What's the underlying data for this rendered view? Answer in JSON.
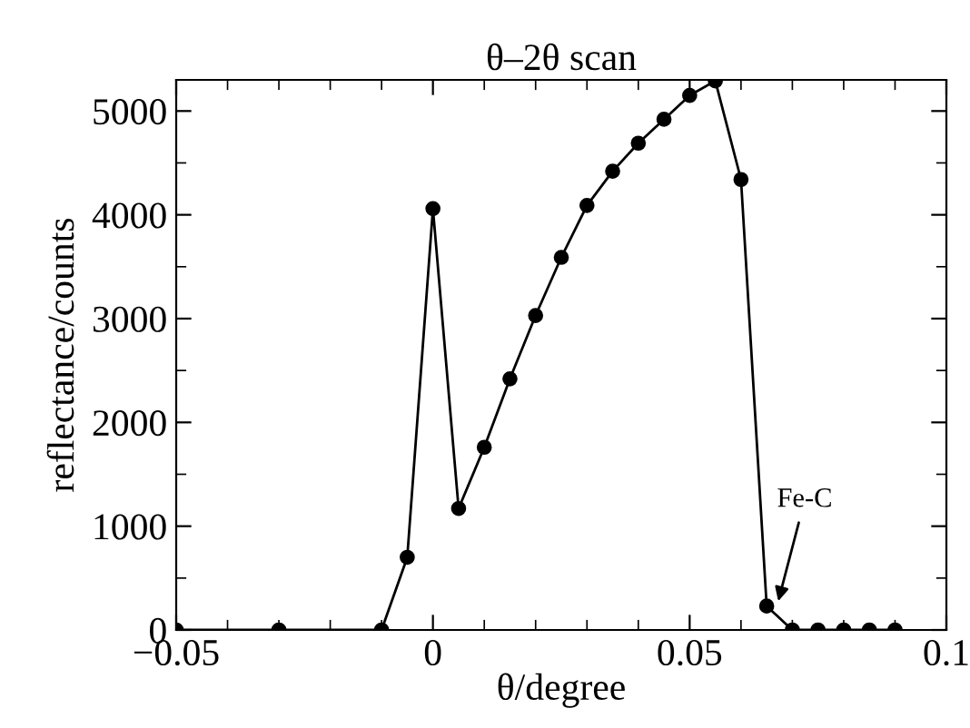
{
  "chart_data": {
    "type": "line",
    "title": "θ–2θ scan",
    "xlabel": "θ/degree",
    "ylabel": "reflectance/counts",
    "x": [
      -0.05,
      -0.03,
      -0.01,
      -0.005,
      0,
      0.005,
      0.01,
      0.015,
      0.02,
      0.025,
      0.03,
      0.035,
      0.04,
      0.045,
      0.05,
      0.055,
      0.06,
      0.065,
      0.07,
      0.075,
      0.08,
      0.085,
      0.09
    ],
    "series": [
      {
        "color": "#000000",
        "values": [
          0,
          0,
          0,
          700,
          4060,
          1170,
          1760,
          2420,
          3030,
          3590,
          4090,
          4420,
          4690,
          4920,
          5150,
          5290,
          4340,
          230,
          0,
          0,
          0,
          0,
          0
        ]
      }
    ],
    "xlim": [
      -0.05,
      0.1
    ],
    "ylim": [
      0,
      5300
    ],
    "xticks": [
      -0.05,
      0,
      0.05,
      0.1
    ],
    "yticks": [
      0,
      1000,
      2000,
      3000,
      4000,
      5000
    ],
    "marker": "circle",
    "grid": false,
    "legend": false,
    "annotations": [
      {
        "text": "Fe-C",
        "x": 0.067,
        "y": 230
      }
    ]
  }
}
